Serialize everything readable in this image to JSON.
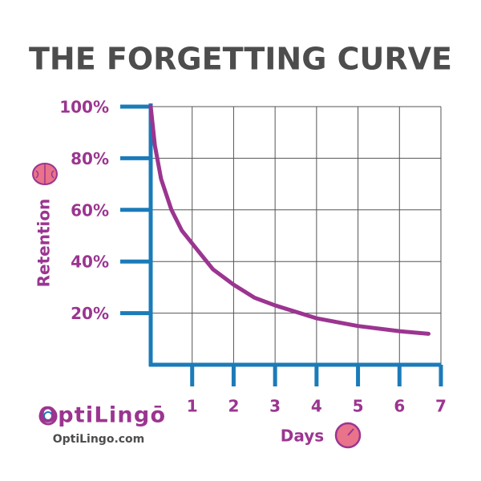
{
  "chart_data": {
    "type": "line",
    "title": "THE FORGETTING CURVE",
    "x_label": "Days",
    "y_label": "Retention",
    "x": [
      0,
      0.1,
      0.25,
      0.5,
      0.75,
      1,
      1.5,
      2,
      2.5,
      3,
      4,
      5,
      6,
      6.7
    ],
    "series": [
      {
        "name": "Retention",
        "color": "#9b3590",
        "values": [
          100,
          85,
          72,
          60,
          52,
          47,
          37,
          31,
          26,
          23,
          18,
          15,
          13,
          12
        ]
      }
    ],
    "xlim": [
      0,
      7
    ],
    "xticks": [
      1,
      2,
      3,
      4,
      5,
      6,
      7
    ],
    "ylim": [
      0,
      100
    ],
    "yticks": [
      {
        "value": 20,
        "label": "20%"
      },
      {
        "value": 40,
        "label": "40%"
      },
      {
        "value": 60,
        "label": "60%"
      },
      {
        "value": 80,
        "label": "80%"
      },
      {
        "value": 100,
        "label": "100%"
      }
    ],
    "grid": true,
    "axis_color": "#1b7bb9"
  },
  "branding": {
    "logo": "OptiLingō",
    "url": "OptiLingo.com"
  }
}
